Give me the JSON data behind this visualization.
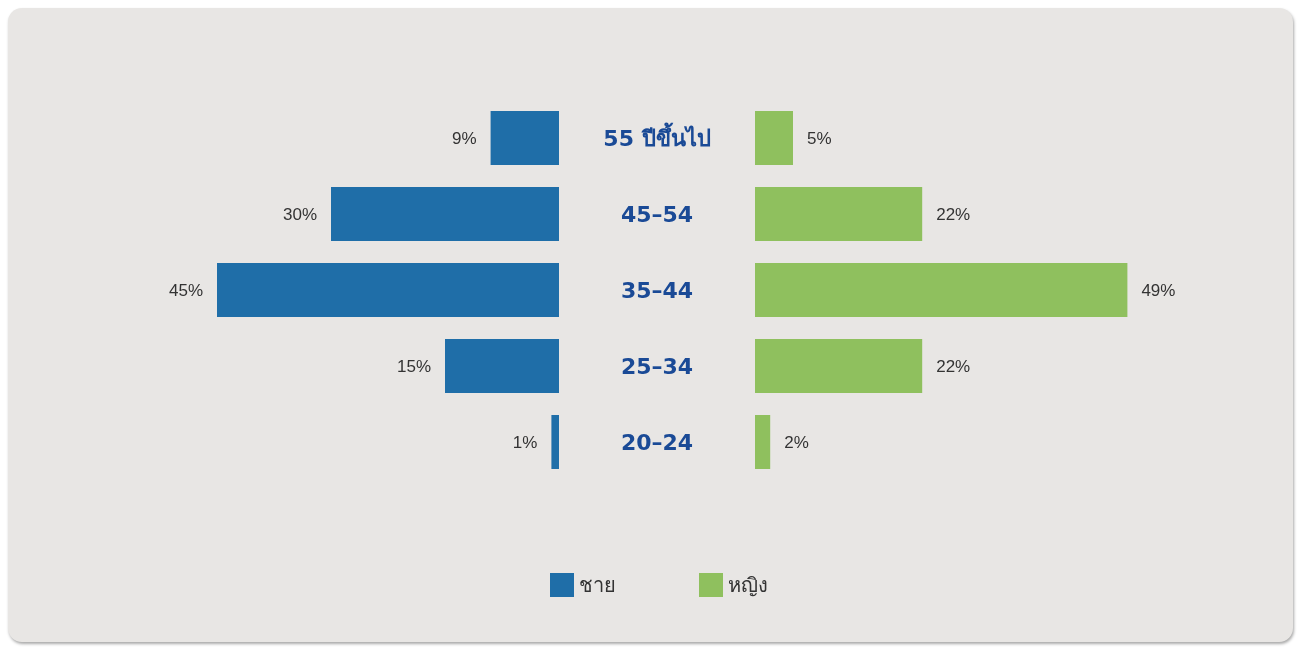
{
  "chart_data": [
    {
      "type": "bar",
      "orientation": "horizontal",
      "categories": [
        "55 ปีขึ้นไป",
        "45–54",
        "35–44",
        "25–34",
        "20–24"
      ],
      "series": [
        {
          "name": "ชาย",
          "color": "#1f6ea8",
          "values": [
            9,
            30,
            45,
            15,
            1
          ],
          "value_labels": [
            "9%",
            "30%",
            "45%",
            "15%",
            "1%"
          ]
        }
      ],
      "legend": "bottom"
    },
    {
      "type": "bar",
      "orientation": "horizontal",
      "categories": [
        null,
        null,
        null,
        null,
        null
      ],
      "series": [
        {
          "name": "หญิง",
          "color": "#8fc05e",
          "values": [
            5,
            22,
            49,
            22,
            2
          ],
          "value_labels": [
            "5%",
            "22%",
            "49%",
            "22%",
            "2%"
          ]
        }
      ],
      "legend": "bottom",
      "tick_labels": false
    }
  ]
}
